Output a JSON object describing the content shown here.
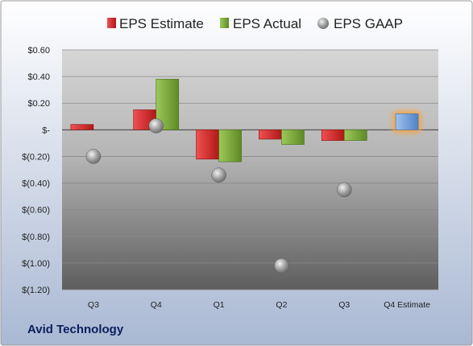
{
  "company": "Avid Technology",
  "chart_data": {
    "type": "bar",
    "categories": [
      "Q3",
      "Q4",
      "Q1",
      "Q2",
      "Q3",
      "Q4 Estimate"
    ],
    "series": [
      {
        "name": "EPS Estimate",
        "kind": "bar",
        "color": "#d42a2a",
        "values": [
          0.04,
          0.15,
          -0.22,
          -0.07,
          -0.08,
          null
        ]
      },
      {
        "name": "EPS Actual",
        "kind": "bar",
        "color": "#7aa83a",
        "values": [
          null,
          0.38,
          -0.24,
          -0.11,
          -0.08,
          null
        ]
      },
      {
        "name": "EPS GAAP",
        "kind": "marker",
        "color": "#9a9a9a",
        "values": [
          -0.2,
          0.03,
          -0.34,
          -1.02,
          -0.45,
          null
        ]
      },
      {
        "name": "Q4 Estimate",
        "kind": "bar",
        "color": "#6fa0dc",
        "highlight": "#f5a64a",
        "values": [
          null,
          null,
          null,
          null,
          null,
          0.12
        ]
      }
    ],
    "legend": [
      "EPS Estimate",
      "EPS Actual",
      "EPS GAAP"
    ],
    "legend_position": "top",
    "ylim": [
      -1.2,
      0.6
    ],
    "yticks": [
      0.6,
      0.4,
      0.2,
      0,
      -0.2,
      -0.4,
      -0.6,
      -0.8,
      -1.0,
      -1.2
    ],
    "ytick_labels": [
      "$0.60",
      "$0.40",
      "$0.20",
      "$-",
      "$(0.20)",
      "$(0.40)",
      "$(0.60)",
      "$(0.80)",
      "$(1.00)",
      "$(1.20)"
    ],
    "grid": true
  }
}
